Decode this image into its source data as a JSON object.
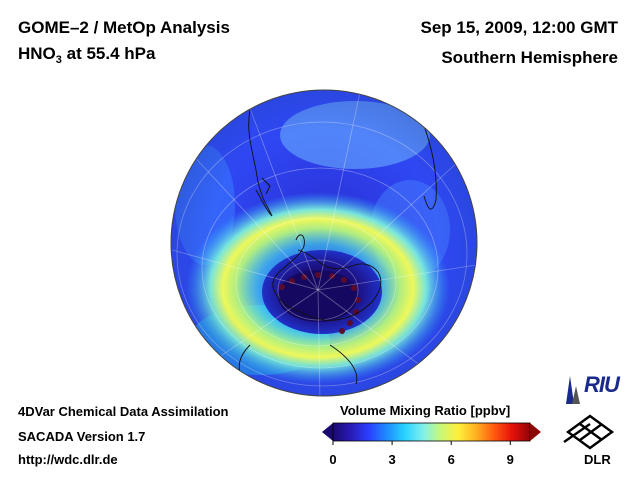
{
  "header": {
    "left_line1": "GOME–2 / MetOp Analysis",
    "left_line2_prefix": "HNO",
    "left_line2_sub": "3",
    "left_line2_suffix": " at 55.4 hPa",
    "right_line1": "Sep 15, 2009, 12:00 GMT",
    "right_line2": "Southern Hemisphere"
  },
  "footer": {
    "line1": "4DVar Chemical Data Assimilation",
    "line2": "SACADA Version 1.7",
    "line3": "http://wdc.dlr.de"
  },
  "colorbar": {
    "title": "Volume Mixing Ratio [ppbv]",
    "ticks": [
      "0",
      "3",
      "6",
      "9"
    ],
    "tick_values": [
      0,
      3,
      6,
      9
    ],
    "range": [
      0,
      10
    ],
    "colors": [
      "#1a0a6e",
      "#2a1ab8",
      "#2b40ff",
      "#1f8cff",
      "#28d2ff",
      "#7ef0ee",
      "#c8f878",
      "#fff03c",
      "#ffb020",
      "#ff5a10",
      "#e8100a",
      "#8e0606"
    ]
  },
  "logos": {
    "riu": "RIU",
    "dlr": "DLR"
  }
}
